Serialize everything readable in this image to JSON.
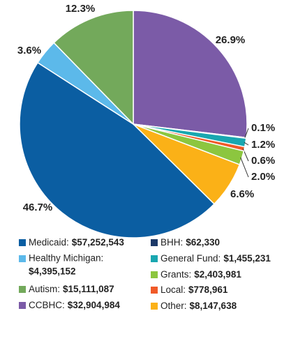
{
  "chart_data": {
    "type": "pie",
    "categories": [
      "Medicaid:",
      "Healthy Michigan:",
      "Autism:",
      "CCBHC:",
      "BHH:",
      "General Fund:",
      "Grants:",
      "Local:",
      "Other:"
    ],
    "amount_labels": [
      "$57,252,543",
      "$4,395,152",
      "$15,111,087",
      "$32,904,984",
      "$62,330",
      "$1,455,231",
      "$2,403,981",
      "$778,961",
      "$8,147,638"
    ],
    "values": [
      46.7,
      3.6,
      12.3,
      26.9,
      0.1,
      1.2,
      2.0,
      0.6,
      6.6
    ],
    "value_labels": [
      "46.7%",
      "3.6%",
      "12.3%",
      "26.9%",
      "0.1%",
      "1.2%",
      "2.0%",
      "0.6%",
      "6.6%"
    ],
    "colors": [
      "#0b5ea2",
      "#5cb9ea",
      "#73a95b",
      "#7b5ba7",
      "#1c3968",
      "#19a7b0",
      "#8cc63f",
      "#f05a28",
      "#fbb117"
    ]
  }
}
